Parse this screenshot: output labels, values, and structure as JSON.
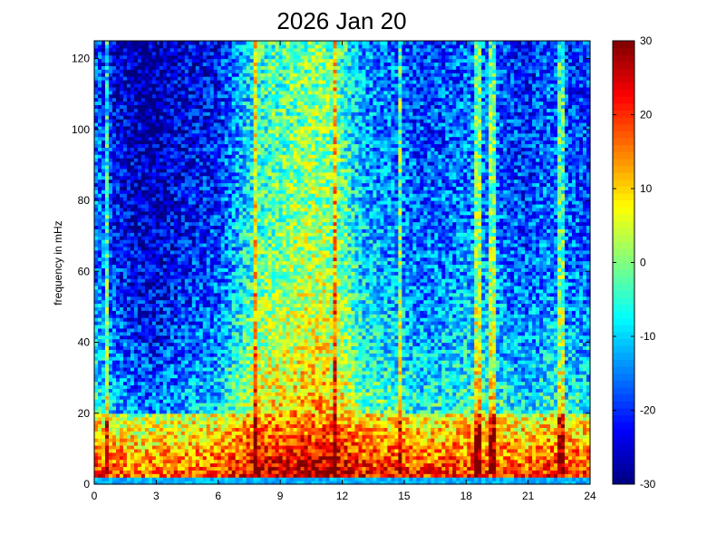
{
  "chart_data": {
    "type": "heatmap",
    "title": "2026 Jan 20",
    "xlabel": "",
    "ylabel": "frequency in mHz",
    "xlim": [
      0,
      24
    ],
    "ylim": [
      0,
      125
    ],
    "x_ticks": [
      0,
      3,
      6,
      9,
      12,
      15,
      18,
      21,
      24
    ],
    "x_tick_labels": [
      "0",
      "3",
      "6",
      "9",
      "12",
      "15",
      "18",
      "21",
      "24"
    ],
    "y_ticks": [
      0,
      20,
      40,
      60,
      80,
      100,
      120
    ],
    "y_tick_labels": [
      "0",
      "20",
      "40",
      "60",
      "80",
      "100",
      "120"
    ],
    "colorbar": {
      "colormap": "jet",
      "clim": [
        -30,
        30
      ],
      "ticks": [
        -30,
        -20,
        -10,
        0,
        10,
        20,
        30
      ],
      "tick_labels": [
        "-30",
        "-20",
        "-10",
        "0",
        "10",
        "20",
        "30"
      ]
    },
    "time_columns_hours": 24,
    "activity_profile": [
      {
        "hour": 0,
        "level": -18
      },
      {
        "hour": 1,
        "level": -24
      },
      {
        "hour": 2,
        "level": -28
      },
      {
        "hour": 3,
        "level": -29
      },
      {
        "hour": 4,
        "level": -26
      },
      {
        "hour": 5,
        "level": -24
      },
      {
        "hour": 6,
        "level": -22
      },
      {
        "hour": 7,
        "level": -14
      },
      {
        "hour": 8,
        "level": -6
      },
      {
        "hour": 9,
        "level": -4
      },
      {
        "hour": 10,
        "level": -2
      },
      {
        "hour": 11,
        "level": -1
      },
      {
        "hour": 12,
        "level": -5
      },
      {
        "hour": 13,
        "level": -14
      },
      {
        "hour": 14,
        "level": -16
      },
      {
        "hour": 15,
        "level": -18
      },
      {
        "hour": 16,
        "level": -20
      },
      {
        "hour": 17,
        "level": -19
      },
      {
        "hour": 18,
        "level": -17
      },
      {
        "hour": 19,
        "level": -16
      },
      {
        "hour": 20,
        "level": -20
      },
      {
        "hour": 21,
        "level": -22
      },
      {
        "hour": 22,
        "level": -18
      },
      {
        "hour": 23,
        "level": -20
      },
      {
        "hour": 24,
        "level": -20
      }
    ],
    "low_frequency_band": {
      "range_mHz": [
        0,
        20
      ],
      "level": 22
    },
    "bright_streaks_hours": [
      0.6,
      7.8,
      11.6,
      14.8,
      18.6,
      19.3,
      22.6
    ]
  }
}
